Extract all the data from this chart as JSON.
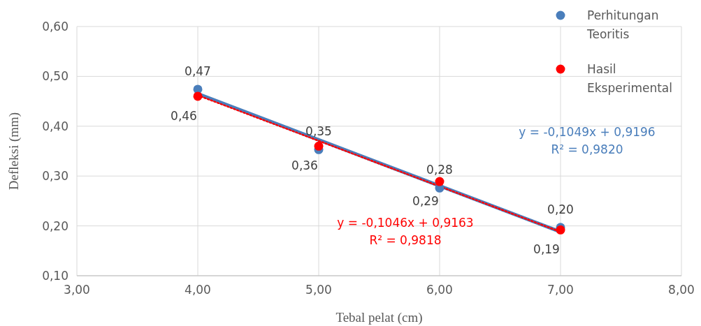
{
  "chart_data": {
    "type": "scatter",
    "xlabel": "Tebal pelat (cm)",
    "ylabel": "Defleksi (mm)",
    "xlim": [
      3,
      8
    ],
    "xticks": [
      {
        "value": 3,
        "label": "3,00"
      },
      {
        "value": 4,
        "label": "4,00"
      },
      {
        "value": 5,
        "label": "5,00"
      },
      {
        "value": 6,
        "label": "6,00"
      },
      {
        "value": 7,
        "label": "7,00"
      },
      {
        "value": 8,
        "label": "8,00"
      }
    ],
    "ylim": [
      0.1,
      0.6
    ],
    "yticks": [
      {
        "value": 0.1,
        "label": "0,10"
      },
      {
        "value": 0.2,
        "label": "0,20"
      },
      {
        "value": 0.3,
        "label": "0,30"
      },
      {
        "value": 0.4,
        "label": "0,40"
      },
      {
        "value": 0.5,
        "label": "0,50"
      },
      {
        "value": 0.6,
        "label": "0,60"
      }
    ],
    "grid": true,
    "legend": "top right",
    "marker": "circle",
    "series": [
      {
        "name": "Perhitungan Teoritis",
        "color": "#4a7ebb",
        "x": [
          4,
          5,
          6,
          7
        ],
        "values": [
          0.474,
          0.353,
          0.276,
          0.197
        ],
        "value_labels": [
          "0,47",
          "0,35",
          "0,28",
          "0,20"
        ]
      },
      {
        "name": "Hasil Eksperimental",
        "color": "#ff0000",
        "x": [
          4,
          5,
          6,
          7
        ],
        "values": [
          0.46,
          0.36,
          0.289,
          0.192
        ],
        "value_labels": [
          "0,46",
          "0,36",
          "0,29",
          "0,19"
        ]
      },
      {
        "type": "line",
        "color": "#4a7ebb",
        "x": [
          4,
          7
        ],
        "values": [
          0.465,
          0.188
        ],
        "line_style": "solid",
        "marker": "none"
      },
      {
        "type": "line",
        "color": "#ff0000",
        "x": [
          4,
          7
        ],
        "values": [
          0.462,
          0.188
        ],
        "line_style": "dotted",
        "marker": "none"
      }
    ],
    "annotations": [
      "y = -0,1049x + 0,9196\nR² = 0,9820",
      "y = -0,1046x + 0,9163\nR² = 0,9818"
    ]
  }
}
